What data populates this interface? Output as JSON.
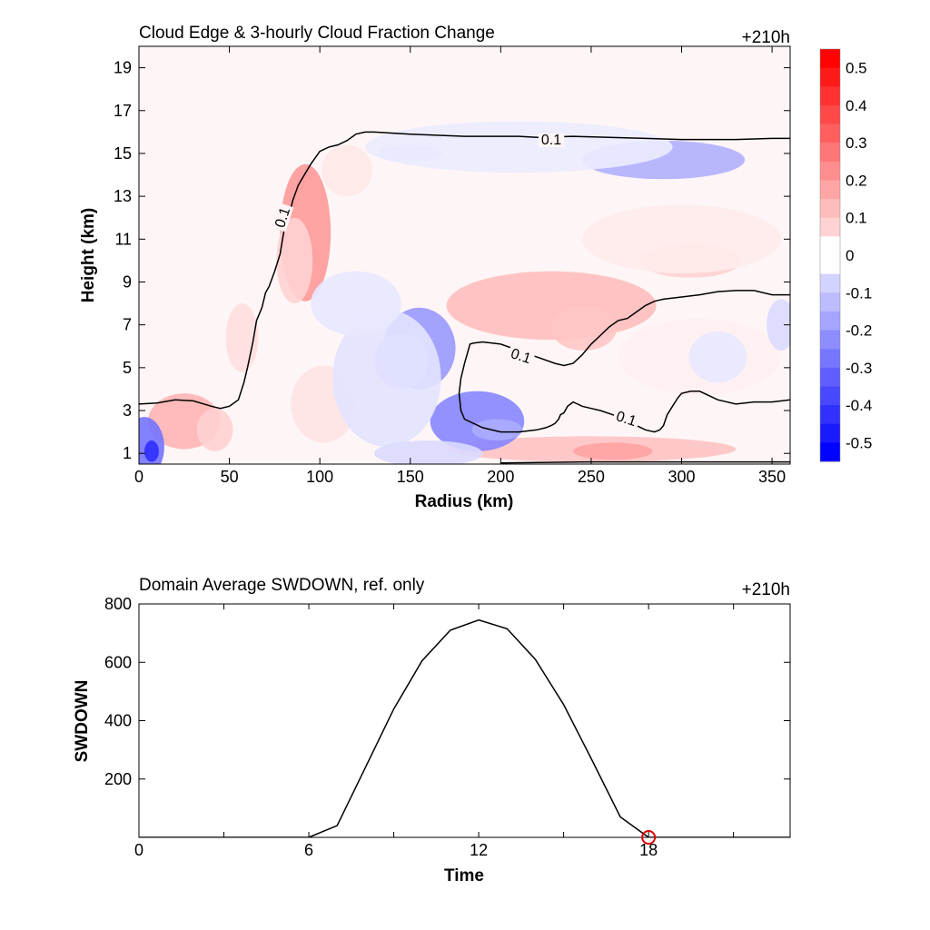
{
  "chart_data": [
    {
      "type": "contour",
      "title": "Cloud Edge & 3-hourly Cloud Fraction Change",
      "time_label": "+210h",
      "xlabel": "Radius (km)",
      "ylabel": "Height (km)",
      "xlim": [
        0,
        360
      ],
      "ylim": [
        0.5,
        20
      ],
      "xticks": [
        "0",
        "50",
        "100",
        "150",
        "200",
        "250",
        "300",
        "350"
      ],
      "yticks": [
        "1",
        "3",
        "5",
        "7",
        "9",
        "11",
        "13",
        "15",
        "17",
        "19"
      ],
      "colorbar": {
        "range": [
          -0.55,
          0.55
        ],
        "labels": [
          "0.5",
          "0.4",
          "0.3",
          "0.2",
          "0.1",
          "0",
          "-0.1",
          "-0.2",
          "-0.3",
          "-0.4",
          "-0.5"
        ],
        "positive_color": "#ff0000",
        "negative_color": "#0000ff",
        "zero_color": "#ffffff"
      },
      "contour_level": 0.1,
      "contour_labels": [
        "0.1",
        "0.1",
        "0.1",
        "0.1"
      ],
      "cloud_edge_upper": {
        "x": [
          0,
          10,
          20,
          30,
          40,
          45,
          50,
          55,
          58,
          60,
          63,
          65,
          68,
          70,
          72,
          75,
          78,
          80,
          83,
          85,
          88,
          90,
          95,
          100,
          105,
          110,
          115,
          120,
          125,
          130,
          150,
          180,
          210,
          220,
          240,
          260,
          280,
          300,
          330,
          350,
          360
        ],
        "y": [
          3.3,
          3.35,
          3.5,
          3.45,
          3.2,
          3.1,
          3.2,
          3.5,
          4.3,
          5.0,
          6.2,
          7.2,
          7.8,
          8.5,
          8.8,
          9.5,
          10.3,
          11.3,
          12.1,
          12.8,
          13.5,
          13.8,
          14.5,
          15.1,
          15.3,
          15.4,
          15.6,
          15.9,
          16.0,
          16.0,
          15.9,
          15.8,
          15.8,
          15.75,
          15.8,
          15.75,
          15.7,
          15.65,
          15.65,
          15.7,
          15.7
        ]
      },
      "cloud_edge_lower": {
        "x": [
          360,
          350,
          340,
          330,
          320,
          310,
          305,
          300,
          298,
          295,
          292,
          290,
          288,
          285,
          280,
          270,
          262,
          255,
          250,
          245,
          240,
          237,
          235,
          233,
          232,
          230,
          228,
          225,
          220,
          210,
          200,
          190,
          180,
          178,
          177,
          178,
          180,
          182,
          183,
          185,
          190,
          200,
          210,
          220,
          230,
          235,
          240,
          245,
          250,
          255,
          260,
          265,
          270,
          275,
          280,
          285,
          290,
          300,
          310,
          320,
          330,
          340,
          350,
          360
        ],
        "y": [
          3.5,
          3.4,
          3.4,
          3.3,
          3.5,
          3.9,
          3.9,
          3.8,
          3.6,
          3.2,
          2.8,
          2.3,
          2.1,
          2.0,
          2.1,
          2.5,
          2.8,
          3.0,
          3.1,
          3.2,
          3.4,
          3.2,
          2.9,
          2.8,
          2.6,
          2.4,
          2.3,
          2.2,
          2.1,
          2.0,
          2.0,
          2.2,
          2.6,
          3.0,
          3.8,
          4.5,
          5.2,
          5.8,
          6.1,
          6.15,
          6.2,
          6.1,
          5.8,
          5.5,
          5.2,
          5.1,
          5.2,
          5.6,
          6.1,
          6.5,
          6.9,
          7.2,
          7.3,
          7.6,
          7.9,
          8.1,
          8.2,
          8.3,
          8.4,
          8.55,
          8.6,
          8.6,
          8.4,
          8.4
        ]
      },
      "cloud_edge_base": {
        "x": [
          200,
          250,
          300,
          360
        ],
        "y": [
          0.55,
          0.6,
          0.6,
          0.6
        ]
      },
      "anomalies": [
        {
          "x": 92,
          "y": 11.3,
          "rx": 14,
          "ry": 3.2,
          "value": 0.22
        },
        {
          "x": 86,
          "y": 10.0,
          "rx": 10,
          "ry": 2.0,
          "value": 0.1
        },
        {
          "x": 115,
          "y": 14.2,
          "rx": 14,
          "ry": 1.2,
          "value": 0.05
        },
        {
          "x": 57,
          "y": 6.4,
          "rx": 9,
          "ry": 1.6,
          "value": 0.07
        },
        {
          "x": 102,
          "y": 3.3,
          "rx": 18,
          "ry": 1.8,
          "value": 0.06
        },
        {
          "x": 25,
          "y": 2.5,
          "rx": 20,
          "ry": 1.3,
          "value": 0.16
        },
        {
          "x": 42,
          "y": 2.1,
          "rx": 10,
          "ry": 1.0,
          "value": 0.1
        },
        {
          "x": 228,
          "y": 7.9,
          "rx": 58,
          "ry": 1.6,
          "value": 0.14
        },
        {
          "x": 246,
          "y": 6.8,
          "rx": 18,
          "ry": 1.0,
          "value": 0.12
        },
        {
          "x": 305,
          "y": 10.0,
          "rx": 28,
          "ry": 0.8,
          "value": 0.1
        },
        {
          "x": 300,
          "y": 11.0,
          "rx": 55,
          "ry": 1.6,
          "value": 0.04
        },
        {
          "x": 250,
          "y": 1.2,
          "rx": 80,
          "ry": 0.6,
          "value": 0.13
        },
        {
          "x": 262,
          "y": 1.1,
          "rx": 22,
          "ry": 0.4,
          "value": 0.2
        },
        {
          "x": 310,
          "y": 5.5,
          "rx": 45,
          "ry": 1.8,
          "value": 0.03
        },
        {
          "x": 3,
          "y": 1.3,
          "rx": 11,
          "ry": 1.4,
          "value": -0.3
        },
        {
          "x": 7,
          "y": 1.1,
          "rx": 4,
          "ry": 0.5,
          "value": -0.45
        },
        {
          "x": 155,
          "y": 5.9,
          "rx": 20,
          "ry": 1.9,
          "value": -0.22
        },
        {
          "x": 145,
          "y": 5.3,
          "rx": 15,
          "ry": 1.3,
          "value": -0.12
        },
        {
          "x": 187,
          "y": 2.5,
          "rx": 26,
          "ry": 1.4,
          "value": -0.26
        },
        {
          "x": 198,
          "y": 2.1,
          "rx": 14,
          "ry": 0.5,
          "value": -0.18
        },
        {
          "x": 137,
          "y": 4.5,
          "rx": 30,
          "ry": 3.2,
          "value": -0.06
        },
        {
          "x": 290,
          "y": 14.7,
          "rx": 45,
          "ry": 0.9,
          "value": -0.17
        },
        {
          "x": 150,
          "y": 15.0,
          "rx": 18,
          "ry": 0.4,
          "value": -0.1
        },
        {
          "x": 210,
          "y": 15.3,
          "rx": 85,
          "ry": 1.2,
          "value": -0.04
        },
        {
          "x": 160,
          "y": 1.0,
          "rx": 30,
          "ry": 0.6,
          "value": -0.08
        },
        {
          "x": 120,
          "y": 8.0,
          "rx": 25,
          "ry": 1.5,
          "value": -0.05
        },
        {
          "x": 355,
          "y": 7.0,
          "rx": 8,
          "ry": 1.2,
          "value": -0.08
        },
        {
          "x": 320,
          "y": 5.5,
          "rx": 16,
          "ry": 1.2,
          "value": -0.05
        }
      ]
    },
    {
      "type": "line",
      "title": "Domain Average SWDOWN, ref. only",
      "time_label": "+210h",
      "xlabel": "Time",
      "ylabel": "SWDOWN",
      "xlim": [
        0,
        23
      ],
      "ylim": [
        0,
        800
      ],
      "xticks": [
        "0",
        "6",
        "12",
        "18"
      ],
      "yticks": [
        "200",
        "400",
        "600",
        "800"
      ],
      "x": [
        0,
        1,
        2,
        3,
        4,
        5,
        6,
        7,
        8,
        9,
        10,
        11,
        12,
        13,
        14,
        15,
        16,
        17,
        18,
        19,
        20,
        21,
        22,
        23
      ],
      "values": [
        0,
        0,
        0,
        0,
        0,
        0,
        0,
        40,
        240,
        440,
        605,
        710,
        745,
        715,
        610,
        455,
        265,
        70,
        0,
        0,
        0,
        0,
        0,
        0
      ],
      "current_marker": {
        "x": 18,
        "y": 0,
        "color": "#dd0000"
      }
    }
  ]
}
